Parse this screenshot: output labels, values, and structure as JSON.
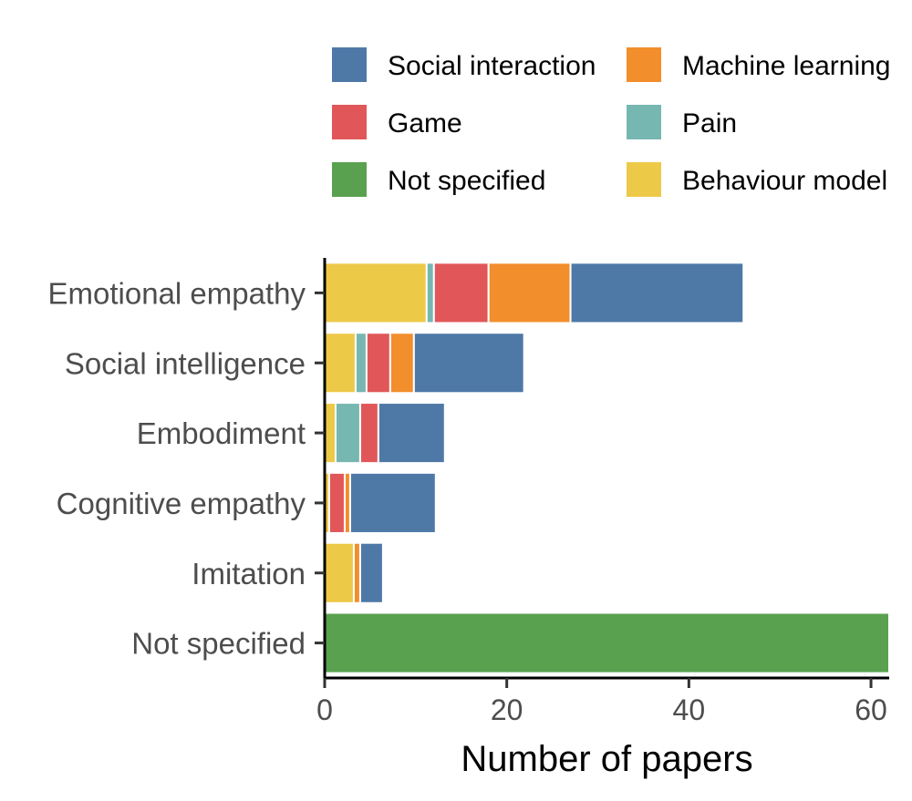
{
  "chart_data": {
    "type": "bar",
    "orientation": "horizontal",
    "stacked": true,
    "categories": [
      "Emotional empathy",
      "Social intelligence",
      "Embodiment",
      "Cognitive empathy",
      "Imitation",
      "Not specified"
    ],
    "series": [
      {
        "name": "Behaviour model",
        "color": "#EDC948",
        "values": [
          11.2,
          3.4,
          1.2,
          0.5,
          3.2,
          0
        ]
      },
      {
        "name": "Pain",
        "color": "#76B7B2",
        "values": [
          0.8,
          1.2,
          2.7,
          0,
          0,
          0
        ]
      },
      {
        "name": "Game",
        "color": "#E15759",
        "values": [
          6,
          2.6,
          2,
          1.7,
          0,
          0
        ]
      },
      {
        "name": "Machine learning",
        "color": "#F28E2B",
        "values": [
          9,
          2.6,
          0,
          0.6,
          0.7,
          0
        ]
      },
      {
        "name": "Social interaction",
        "color": "#4E79A7",
        "values": [
          19,
          12.1,
          7.3,
          9.4,
          2.5,
          0
        ]
      },
      {
        "name": "Not specified",
        "color": "#59A14F",
        "values": [
          0,
          0,
          0,
          0,
          0,
          62
        ]
      }
    ],
    "legend_order": [
      "Social interaction",
      "Machine learning",
      "Game",
      "Pain",
      "Not specified",
      "Behaviour model"
    ],
    "xlabel": "Number of papers",
    "ylabel": "",
    "xlim": [
      0,
      62
    ],
    "xticks": [
      0,
      20,
      40,
      60
    ],
    "grid": false,
    "legend_position": "top"
  }
}
